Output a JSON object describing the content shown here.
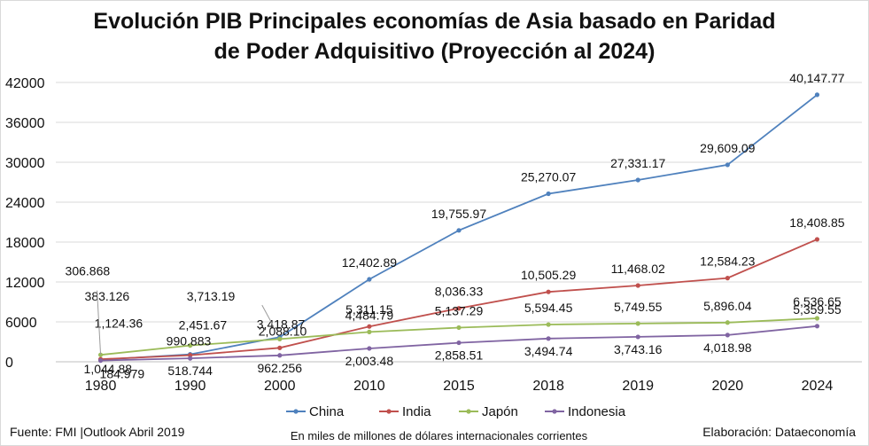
{
  "title_line1": "Evolución PIB Principales economías de Asia basado en Paridad",
  "title_line2": "de Poder Adquisitivo (Proyección al 2024)",
  "footer": {
    "source": "Fuente: FMI |Outlook Abril 2019",
    "units": "En miles de millones de dólares internacionales corrientes",
    "credit": "Elaboración: Dataeconomía"
  },
  "colors": {
    "China": "#4f81bd",
    "India": "#c0504d",
    "Japón": "#9bbb59",
    "Indonesia": "#8064a2",
    "grid": "#d9d9d9"
  },
  "chart_data": {
    "type": "line",
    "title": "Evolución PIB Principales economías de Asia basado en Paridad de Poder Adquisitivo (Proyección al 2024)",
    "categories": [
      "1980",
      "1990",
      "2000",
      "2010",
      "2015",
      "2018",
      "2019",
      "2020",
      "2024"
    ],
    "ylim": [
      0,
      42000
    ],
    "yticks": [
      0,
      6000,
      12000,
      18000,
      24000,
      30000,
      36000,
      42000
    ],
    "grid": true,
    "legend": "bottom",
    "xlabel": "",
    "ylabel": "",
    "series": [
      {
        "name": "China",
        "values": [
          306.868,
          1124.36,
          3713.19,
          12402.89,
          19755.97,
          25270.07,
          27331.17,
          29609.09,
          40147.77
        ],
        "labels": [
          "306.868",
          "1,124.36",
          "3,713.19",
          "12,402.89",
          "19,755.97",
          "25,270.07",
          "27,331.17",
          "29,609.09",
          "40,147.77"
        ]
      },
      {
        "name": "India",
        "values": [
          383.126,
          990.883,
          2088.1,
          5311.15,
          8036.33,
          10505.29,
          11468.02,
          12584.23,
          18408.85
        ],
        "labels": [
          "383.126",
          "990.883",
          "2,088.10",
          "5,311.15",
          "8,036.33",
          "10,505.29",
          "11,468.02",
          "12,584.23",
          "18,408.85"
        ]
      },
      {
        "name": "Japón",
        "values": [
          1044.88,
          2451.67,
          3418.87,
          4484.79,
          5137.29,
          5594.45,
          5749.55,
          5896.04,
          6536.65
        ],
        "labels": [
          "1,044.88",
          "2,451.67",
          "3,418.87",
          "4,484.79",
          "5,137.29",
          "5,594.45",
          "5,749.55",
          "5,896.04",
          "6,536.65"
        ]
      },
      {
        "name": "Indonesia",
        "values": [
          184.979,
          518.744,
          962.256,
          2003.48,
          2858.51,
          3494.74,
          3743.16,
          4018.98,
          5359.55
        ],
        "labels": [
          "184.979",
          "518.744",
          "962.256",
          "2,003.48",
          "2,858.51",
          "3,494.74",
          "3,743.16",
          "4,018.98",
          "5,359.55"
        ]
      }
    ]
  }
}
